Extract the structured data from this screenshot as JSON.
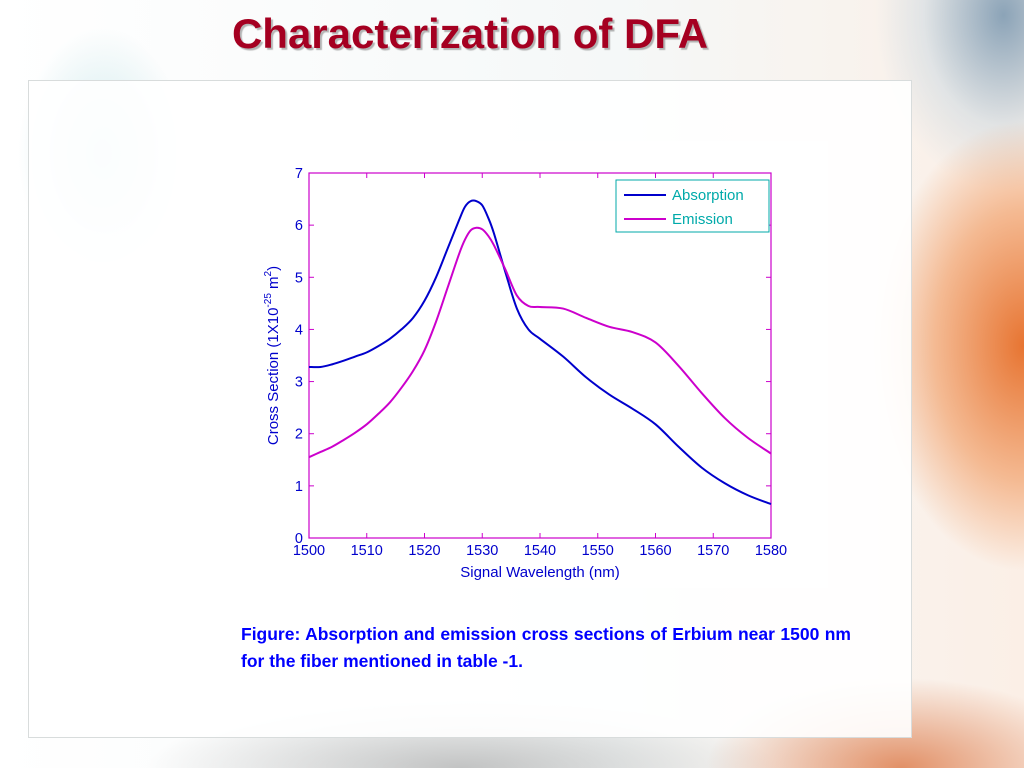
{
  "slide": {
    "title": "Characterization of DFA",
    "caption": "Figure: Absorption and emission cross sections of Erbium near 1500 nm for the fiber mentioned in table -1."
  },
  "colors": {
    "title": "#a50021",
    "caption": "#0000ff",
    "axis": "#cc00cc",
    "axis_label": "#0000cc",
    "legend_text": "#00aaaa"
  },
  "chart_data": {
    "type": "line",
    "title": "",
    "xlabel": "Signal Wavelength (nm)",
    "ylabel": "Cross Section (1X10-25 m2)",
    "ylabel_parts": {
      "base": "Cross Section (1X10",
      "exp1": "-25",
      "mid": " m",
      "exp2": "2",
      "end": ")"
    },
    "xlim": [
      1500,
      1580
    ],
    "ylim": [
      0,
      7
    ],
    "x_ticks": [
      1500,
      1510,
      1520,
      1530,
      1540,
      1550,
      1560,
      1570,
      1580
    ],
    "y_ticks": [
      0,
      1,
      2,
      3,
      4,
      5,
      6,
      7
    ],
    "grid": false,
    "legend_position": "top-right",
    "series": [
      {
        "name": "Absorption",
        "color": "#0000cc",
        "x": [
          1500,
          1502,
          1504,
          1506,
          1508,
          1510,
          1512,
          1514,
          1516,
          1518,
          1520,
          1522,
          1524,
          1526,
          1527,
          1528,
          1529,
          1530,
          1531,
          1532,
          1534,
          1536,
          1538,
          1540,
          1544,
          1548,
          1552,
          1556,
          1560,
          1564,
          1568,
          1572,
          1576,
          1580
        ],
        "y": [
          3.28,
          3.28,
          3.33,
          3.4,
          3.48,
          3.56,
          3.68,
          3.82,
          4.0,
          4.22,
          4.55,
          5.0,
          5.55,
          6.1,
          6.35,
          6.46,
          6.46,
          6.38,
          6.15,
          5.85,
          5.1,
          4.4,
          4.0,
          3.82,
          3.48,
          3.08,
          2.75,
          2.48,
          2.18,
          1.75,
          1.35,
          1.05,
          0.82,
          0.65
        ]
      },
      {
        "name": "Emission",
        "color": "#cc00cc",
        "x": [
          1500,
          1502,
          1504,
          1506,
          1508,
          1510,
          1512,
          1514,
          1516,
          1518,
          1520,
          1522,
          1524,
          1526,
          1527,
          1528,
          1529,
          1530,
          1531,
          1532,
          1534,
          1536,
          1538,
          1540,
          1544,
          1548,
          1552,
          1556,
          1560,
          1564,
          1568,
          1572,
          1576,
          1580
        ],
        "y": [
          1.55,
          1.65,
          1.75,
          1.88,
          2.02,
          2.18,
          2.38,
          2.6,
          2.88,
          3.2,
          3.6,
          4.15,
          4.8,
          5.45,
          5.72,
          5.9,
          5.95,
          5.92,
          5.8,
          5.62,
          5.15,
          4.65,
          4.45,
          4.43,
          4.4,
          4.22,
          4.05,
          3.95,
          3.75,
          3.3,
          2.78,
          2.3,
          1.92,
          1.62
        ]
      }
    ]
  }
}
